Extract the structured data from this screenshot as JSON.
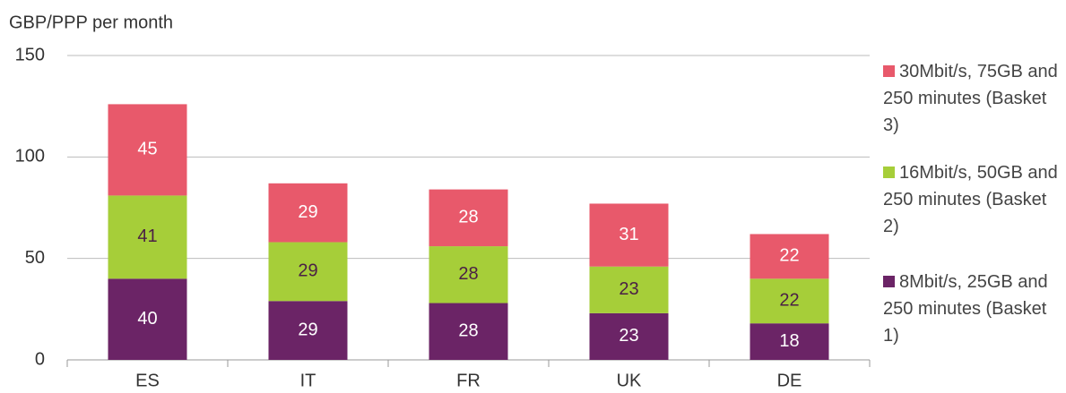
{
  "chart_data": {
    "type": "stacked_bar",
    "title": "GBP/PPP per month",
    "categories": [
      "ES",
      "IT",
      "FR",
      "UK",
      "DE"
    ],
    "series": [
      {
        "name": "8Mbit/s, 25GB and 250 minutes (Basket 1)",
        "color": "#6b2466",
        "values": [
          40,
          29,
          28,
          23,
          18
        ]
      },
      {
        "name": "16Mbit/s, 50GB and 250 minutes (Basket 2)",
        "color": "#a6ce39",
        "values": [
          41,
          29,
          28,
          23,
          22
        ]
      },
      {
        "name": "30Mbit/s, 75GB and 250 minutes (Basket 3)",
        "color": "#e8596b",
        "values": [
          45,
          29,
          28,
          31,
          22
        ]
      }
    ],
    "ylim": [
      0,
      150
    ],
    "yticks": [
      0,
      50,
      100,
      150
    ],
    "grid": true
  }
}
